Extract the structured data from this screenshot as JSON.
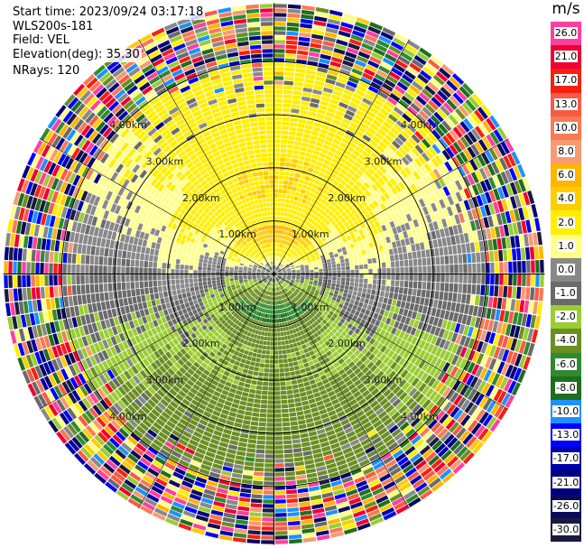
{
  "header": {
    "start_time": "Start time: 2023/09/24 03:17:18",
    "instrument": "WLS200s-181",
    "field": "Field: VEL",
    "elevation": "Elevation(deg): 35.30",
    "nrays": "NRays: 120"
  },
  "colorbar": {
    "unit": "m/s",
    "levels": [
      "26.0",
      "21.0",
      "17.0",
      "13.0",
      "10.0",
      "8.0",
      "6.0",
      "4.0",
      "2.0",
      "1.0",
      "0.0",
      "-1.0",
      "-2.0",
      "-4.0",
      "-6.0",
      "-8.0",
      "-10.0",
      "-13.0",
      "-17.0",
      "-21.0",
      "-26.0",
      "-30.0"
    ],
    "colors": [
      "#ff3fa0",
      "#ee0033",
      "#f52010",
      "#f85a45",
      "#fa7a55",
      "#f89a70",
      "#ffb400",
      "#ffcc00",
      "#ffee00",
      "#ffff88",
      "#888888",
      "#6a6a6a",
      "#9acd32",
      "#6b8e23",
      "#2e8b2e",
      "#1e6e1e",
      "#1e90ff",
      "#0000ff",
      "#0000aa",
      "#000080",
      "#0a0a5a",
      "#1a1a40"
    ]
  },
  "chart_data": {
    "type": "ppi-polar",
    "title": "VEL",
    "field": "VEL",
    "units": "m/s",
    "elevation_deg": 35.3,
    "n_rays": 120,
    "range_rings_km": [
      1.0,
      2.0,
      3.0,
      4.0
    ],
    "ring_labels": [
      "1.00km",
      "2.00km",
      "3.00km",
      "4.00km"
    ],
    "vmin": -30.0,
    "vmax": 26.0,
    "pattern": {
      "description": "approaching (negative) near the southern sector, receding (positive) toward north, noisy beyond ~4 km",
      "clean_radius_km": 4.0,
      "max_range_km": 5.1
    }
  }
}
